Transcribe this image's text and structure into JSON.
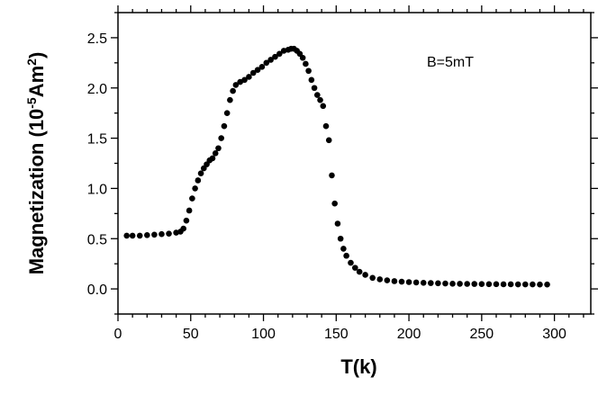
{
  "chart_data": {
    "type": "scatter",
    "title": "",
    "xlabel": "T(k)",
    "ylabel": {
      "main": "Magnetization (10",
      "sup1": "-5",
      "mid": "Am",
      "sup2": "2",
      "end": ")"
    },
    "annotation": "B=5mT",
    "xlim": [
      0,
      325
    ],
    "ylim": [
      -0.25,
      2.75
    ],
    "xticks": [
      0,
      50,
      100,
      150,
      200,
      250,
      300
    ],
    "yticks": [
      0.0,
      0.5,
      1.0,
      1.5,
      2.0,
      2.5
    ],
    "xtick_labels": [
      "0",
      "50",
      "100",
      "150",
      "200",
      "250",
      "300"
    ],
    "ytick_labels": [
      "0.0",
      "0.5",
      "1.0",
      "1.5",
      "2.0",
      "2.5"
    ],
    "marker_color": "#000000",
    "grid": false,
    "series": [
      {
        "x": [
          6,
          10,
          15,
          20,
          25,
          30,
          35,
          40,
          43,
          45,
          47,
          49,
          51,
          53,
          55,
          57,
          59,
          61,
          63,
          65,
          67,
          69,
          71,
          73,
          75,
          77,
          79,
          81,
          84,
          87,
          90,
          93,
          96,
          99,
          102,
          105,
          108,
          111,
          114,
          117,
          119,
          121,
          123,
          125,
          127,
          129,
          131,
          133,
          135,
          137,
          139,
          141,
          143,
          145,
          147,
          149,
          151,
          153,
          155,
          157,
          160,
          163,
          166,
          170,
          175,
          180,
          185,
          190,
          195,
          200,
          205,
          210,
          215,
          220,
          225,
          230,
          235,
          240,
          245,
          250,
          255,
          260,
          265,
          270,
          275,
          280,
          285,
          290,
          295
        ],
        "y": [
          0.53,
          0.53,
          0.53,
          0.535,
          0.54,
          0.545,
          0.55,
          0.56,
          0.57,
          0.6,
          0.68,
          0.78,
          0.9,
          1.0,
          1.08,
          1.15,
          1.2,
          1.24,
          1.28,
          1.3,
          1.35,
          1.4,
          1.5,
          1.62,
          1.75,
          1.88,
          1.97,
          2.03,
          2.06,
          2.08,
          2.11,
          2.15,
          2.18,
          2.21,
          2.25,
          2.28,
          2.31,
          2.34,
          2.37,
          2.38,
          2.39,
          2.39,
          2.37,
          2.34,
          2.3,
          2.24,
          2.17,
          2.08,
          2.0,
          1.93,
          1.88,
          1.82,
          1.62,
          1.48,
          1.13,
          0.85,
          0.65,
          0.5,
          0.4,
          0.33,
          0.26,
          0.21,
          0.17,
          0.14,
          0.11,
          0.095,
          0.085,
          0.077,
          0.072,
          0.068,
          0.064,
          0.061,
          0.058,
          0.056,
          0.054,
          0.052,
          0.051,
          0.05,
          0.049,
          0.048,
          0.047,
          0.047,
          0.046,
          0.046,
          0.045,
          0.045,
          0.045,
          0.044,
          0.044
        ]
      }
    ]
  }
}
